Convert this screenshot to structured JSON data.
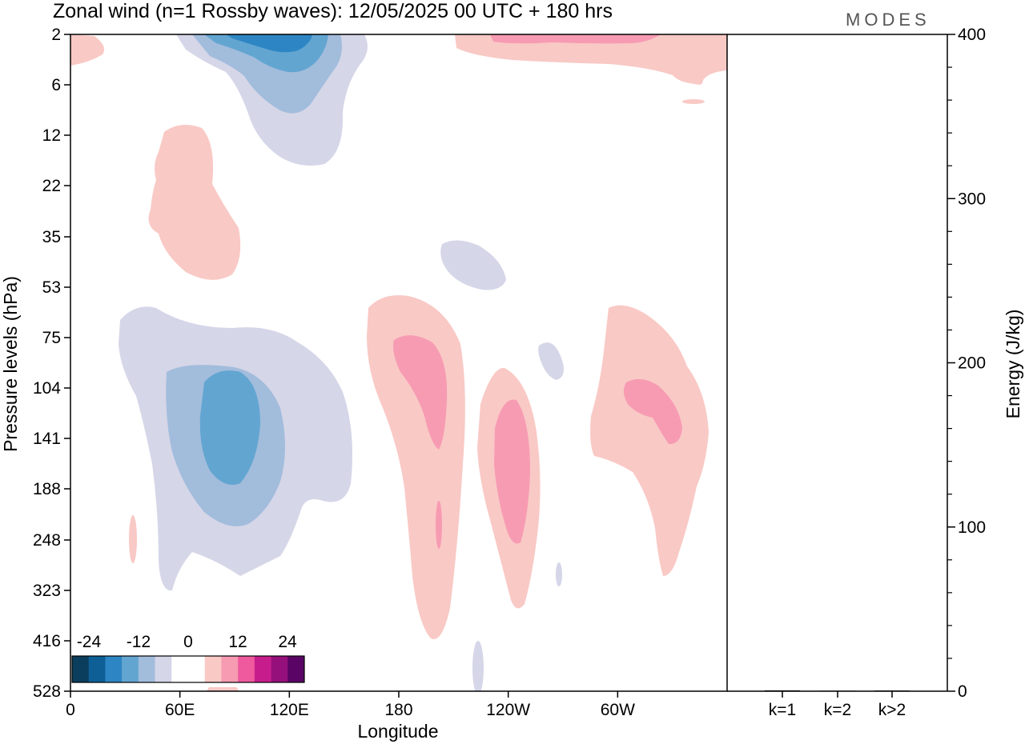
{
  "chart_data": {
    "type": "heatmap",
    "title": "Zonal wind (n=1 Rossby waves):  12/05/2025  00 UTC  + 180 hrs",
    "brand": "MODES",
    "xlabel": "Longitude",
    "ylabel": "Pressure levels (hPa)",
    "x_ticks": [
      "0",
      "60E",
      "120E",
      "180",
      "120W",
      "60W"
    ],
    "x_tick_values": [
      0,
      60,
      120,
      180,
      240,
      300
    ],
    "x_range": [
      0,
      360
    ],
    "y_ticks": [
      "2",
      "6",
      "12",
      "22",
      "35",
      "53",
      "75",
      "104",
      "141",
      "188",
      "248",
      "323",
      "416",
      "528"
    ],
    "colorbar": {
      "labels": [
        "-24",
        "-12",
        "0",
        "12",
        "24"
      ],
      "colors": [
        "#0b3d5c",
        "#0e5f96",
        "#2d86c3",
        "#62a5d1",
        "#a2bcdc",
        "#d5d6e8",
        "#ffffff",
        "#ffffff",
        "#f9c9c5",
        "#f79bb3",
        "#ee5a9d",
        "#c71d8c",
        "#95107b",
        "#5a0565"
      ]
    },
    "energy_panel": {
      "ylabel": "Energy (J/kg)",
      "ylim": [
        0,
        400
      ],
      "y_ticks": [
        "0",
        "100",
        "200",
        "300",
        "400"
      ],
      "categories": [
        "k=1",
        "k=2",
        "k>2"
      ],
      "values": [
        0.5,
        0.3,
        0.4
      ]
    }
  }
}
